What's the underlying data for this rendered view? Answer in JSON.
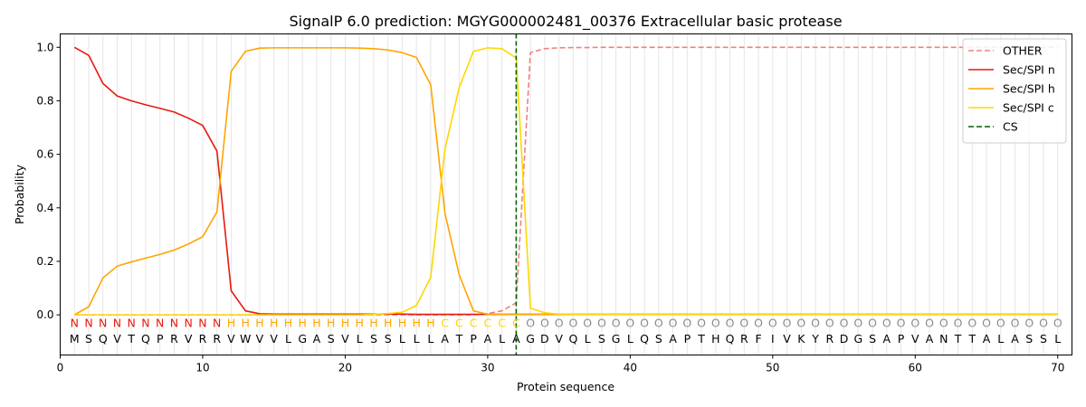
{
  "chart_data": {
    "type": "line",
    "title": "SignalP 6.0 prediction: MGYG000002481_00376 Extracellular basic protease",
    "xlabel": "Protein sequence",
    "ylabel": "Probability",
    "xlim": [
      0,
      71
    ],
    "ylim": [
      -0.15,
      1.05
    ],
    "xticks": [
      0,
      10,
      20,
      30,
      40,
      50,
      60,
      70
    ],
    "yticks": [
      0.0,
      0.2,
      0.4,
      0.6,
      0.8,
      1.0
    ],
    "xtick_labels": [
      "0",
      "10",
      "20",
      "30",
      "40",
      "50",
      "60",
      "70"
    ],
    "ytick_labels": [
      "0.0",
      "0.2",
      "0.4",
      "0.6",
      "0.8",
      "1.0"
    ],
    "legend_position": "top-right",
    "grid": "vertical lines at each residue",
    "sequence": [
      "M",
      "S",
      "Q",
      "V",
      "T",
      "Q",
      "P",
      "R",
      "V",
      "R",
      "R",
      "V",
      "W",
      "V",
      "V",
      "L",
      "G",
      "A",
      "S",
      "V",
      "L",
      "S",
      "S",
      "L",
      "L",
      "L",
      "A",
      "T",
      "P",
      "A",
      "L",
      "A",
      "G",
      "D",
      "V",
      "Q",
      "L",
      "S",
      "G",
      "L",
      "Q",
      "S",
      "A",
      "P",
      "T",
      "H",
      "Q",
      "R",
      "F",
      "I",
      "V",
      "K",
      "Y",
      "R",
      "D",
      "G",
      "S",
      "A",
      "P",
      "V",
      "A",
      "N",
      "T",
      "T",
      "A",
      "L",
      "A",
      "S",
      "S",
      "L"
    ],
    "region_labels": [
      "N",
      "N",
      "N",
      "N",
      "N",
      "N",
      "N",
      "N",
      "N",
      "N",
      "N",
      "H",
      "H",
      "H",
      "H",
      "H",
      "H",
      "H",
      "H",
      "H",
      "H",
      "H",
      "H",
      "H",
      "H",
      "H",
      "C",
      "C",
      "C",
      "C",
      "C",
      "C",
      "O",
      "O",
      "O",
      "O",
      "O",
      "O",
      "O",
      "O",
      "O",
      "O",
      "O",
      "O",
      "O",
      "O",
      "O",
      "O",
      "O",
      "O",
      "O",
      "O",
      "O",
      "O",
      "O",
      "O",
      "O",
      "O",
      "O",
      "O",
      "O",
      "O",
      "O",
      "O",
      "O",
      "O",
      "O",
      "O",
      "O",
      "O"
    ],
    "region_colors": {
      "N": "#e8190f",
      "H": "#ffa500",
      "C": "#ffd700",
      "O": "#8c8c8c"
    },
    "cleavage_site": 32,
    "series": [
      {
        "name": "OTHER",
        "color": "#f08080",
        "dash": "dashed",
        "values": [
          0,
          0,
          0,
          0,
          0,
          0,
          0,
          0,
          0,
          0,
          0,
          0,
          0,
          0,
          0,
          0,
          0,
          0,
          0,
          0,
          0,
          0,
          0,
          0,
          0,
          0,
          0,
          0,
          0,
          0.005,
          0.015,
          0.045,
          0.98,
          0.995,
          0.998,
          0.999,
          0.999,
          1,
          1,
          1,
          1,
          1,
          1,
          1,
          1,
          1,
          1,
          1,
          1,
          1,
          1,
          1,
          1,
          1,
          1,
          1,
          1,
          1,
          1,
          1,
          1,
          1,
          1,
          1,
          1,
          1,
          1,
          1,
          1,
          1
        ]
      },
      {
        "name": "Sec/SPI n",
        "color": "#e8190f",
        "dash": "solid",
        "values": [
          1.0,
          0.97,
          0.865,
          0.818,
          0.8,
          0.785,
          0.772,
          0.758,
          0.735,
          0.708,
          0.612,
          0.09,
          0.015,
          0.004,
          0.003,
          0.003,
          0.003,
          0.003,
          0.003,
          0.003,
          0.003,
          0.003,
          0.003,
          0.003,
          0.002,
          0.002,
          0.002,
          0.002,
          0.002,
          0.002,
          0.002,
          0.002,
          0.002,
          0.002,
          0.002,
          0.002,
          0.002,
          0.002,
          0.002,
          0.002,
          0.002,
          0.002,
          0.002,
          0.002,
          0.002,
          0.002,
          0.002,
          0.002,
          0.002,
          0.002,
          0.002,
          0.002,
          0.002,
          0.002,
          0.002,
          0.002,
          0.002,
          0.002,
          0.002,
          0.002,
          0.002,
          0.002,
          0.002,
          0.002,
          0.002,
          0.002,
          0.002,
          0.002,
          0.002,
          0.002
        ]
      },
      {
        "name": "Sec/SPI h",
        "color": "#ffa500",
        "dash": "solid",
        "values": [
          0.0,
          0.03,
          0.138,
          0.182,
          0.198,
          0.212,
          0.226,
          0.242,
          0.265,
          0.292,
          0.385,
          0.91,
          0.985,
          0.997,
          0.998,
          0.998,
          0.998,
          0.998,
          0.998,
          0.998,
          0.997,
          0.995,
          0.99,
          0.98,
          0.962,
          0.86,
          0.38,
          0.15,
          0.015,
          0.002,
          0.002,
          0.002,
          0.002,
          0.002,
          0.002,
          0.002,
          0.002,
          0.002,
          0.002,
          0.002,
          0.002,
          0.002,
          0.002,
          0.002,
          0.002,
          0.002,
          0.002,
          0.002,
          0.002,
          0.002,
          0.002,
          0.002,
          0.002,
          0.002,
          0.002,
          0.002,
          0.002,
          0.002,
          0.002,
          0.002,
          0.002,
          0.002,
          0.002,
          0.002,
          0.002,
          0.002,
          0.002,
          0.002,
          0.002,
          0.002
        ]
      },
      {
        "name": "Sec/SPI c",
        "color": "#ffd700",
        "dash": "solid",
        "values": [
          0,
          0,
          0,
          0,
          0,
          0,
          0,
          0,
          0,
          0,
          0,
          0,
          0,
          0,
          0,
          0,
          0,
          0,
          0,
          0,
          0,
          0.002,
          0.005,
          0.01,
          0.035,
          0.14,
          0.62,
          0.85,
          0.985,
          0.998,
          0.995,
          0.96,
          0.025,
          0.008,
          0.003,
          0.002,
          0.002,
          0.002,
          0.002,
          0.002,
          0.002,
          0.002,
          0.002,
          0.002,
          0.002,
          0.002,
          0.002,
          0.002,
          0.002,
          0.002,
          0.002,
          0.002,
          0.002,
          0.002,
          0.002,
          0.002,
          0.002,
          0.002,
          0.002,
          0.002,
          0.002,
          0.002,
          0.002,
          0.002,
          0.002,
          0.002,
          0.002,
          0.002,
          0.002,
          0.002
        ]
      }
    ],
    "legend": [
      {
        "label": "OTHER",
        "color": "#f08080",
        "dash": "dashed"
      },
      {
        "label": "Sec/SPI n",
        "color": "#e8190f",
        "dash": "solid"
      },
      {
        "label": "Sec/SPI h",
        "color": "#ffa500",
        "dash": "solid"
      },
      {
        "label": "Sec/SPI c",
        "color": "#ffd700",
        "dash": "solid"
      },
      {
        "label": "CS",
        "color": "#006400",
        "dash": "dashed"
      }
    ]
  }
}
